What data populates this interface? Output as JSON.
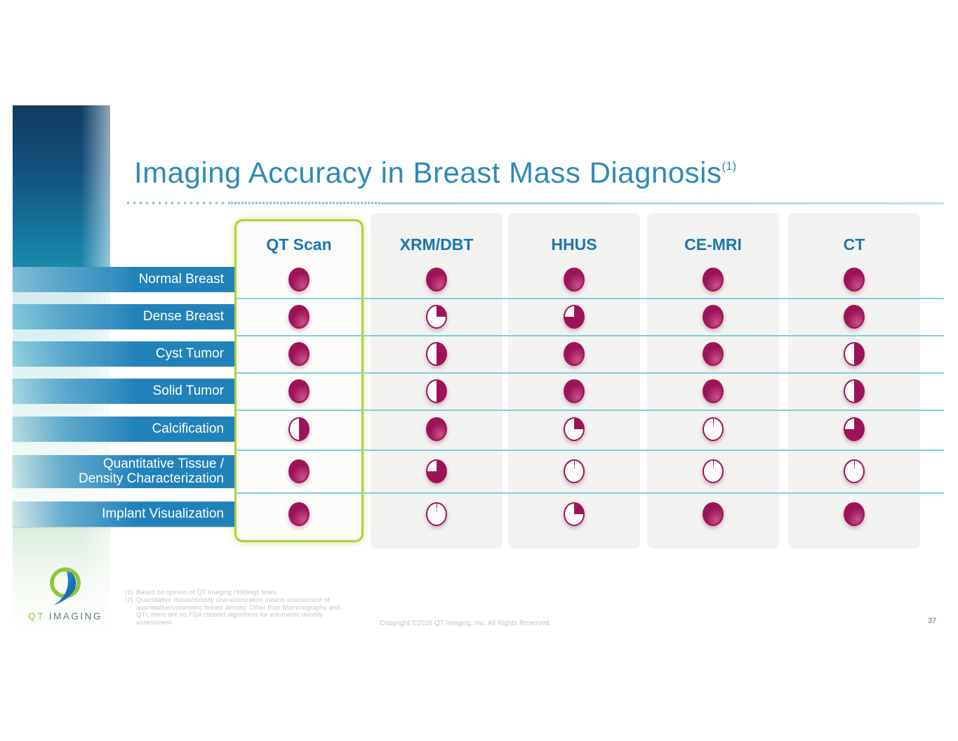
{
  "slide": {
    "title": "Imaging Accuracy in Breast Mass Diagnosis",
    "title_superscript": "(1)",
    "page_number": "37",
    "copyright": "Copyright ©2026 QT Imaging, Inc. All Rights Reserved.",
    "footnotes": [
      {
        "marker": "(1)",
        "text": "Based on opinion of QT Imaging Holdings team."
      },
      {
        "marker": "(2)",
        "text": "Quantitative tissue/density characterization means assessment of quantitative/volumetric breast density. Other than Mammography and QTI, there are no FDA cleared algorithms for volumetric density assessment"
      }
    ],
    "logo": {
      "text_primary": "QT",
      "text_secondary": "IMAGING"
    }
  },
  "colors": {
    "title_blue": "#2e8ab8",
    "header_blue": "#1a78b0",
    "row_bar_blue": "#2182ba",
    "harvey_magenta": "#9c1457",
    "harvey_ring": "#a2125a",
    "row_line_teal": "#7fd0dd",
    "highlight_green": "#b0d23c",
    "logo_green": "#9bc53d",
    "footnote_gray": "#c6c6c6"
  },
  "chart_data": {
    "type": "table",
    "title": "Imaging Accuracy in Breast Mass Diagnosis",
    "value_encoding": "Harvey ball fill fraction (0 = empty circle, 1 = full circle), filled clockwise from 12 o'clock",
    "harvey_ball_scale": [
      0,
      0.25,
      0.5,
      0.75,
      1
    ],
    "columns": [
      "QT Scan",
      "XRM/DBT",
      "HHUS",
      "CE-MRI",
      "CT"
    ],
    "highlighted_column": "QT Scan",
    "rows": [
      "Normal Breast",
      "Dense Breast",
      "Cyst Tumor",
      "Solid Tumor",
      "Calcification",
      "Quantitative Tissue /\nDensity Characterization",
      "Implant Visualization"
    ],
    "values": [
      [
        1,
        1,
        1,
        1,
        1
      ],
      [
        1,
        0.25,
        0.75,
        1,
        1
      ],
      [
        1,
        0.5,
        1,
        1,
        0.5
      ],
      [
        1,
        0.5,
        1,
        1,
        0.5
      ],
      [
        0.5,
        1,
        0.25,
        0,
        0.75
      ],
      [
        1,
        0.75,
        0,
        0,
        0
      ],
      [
        1,
        0,
        0.25,
        1,
        1
      ]
    ]
  }
}
